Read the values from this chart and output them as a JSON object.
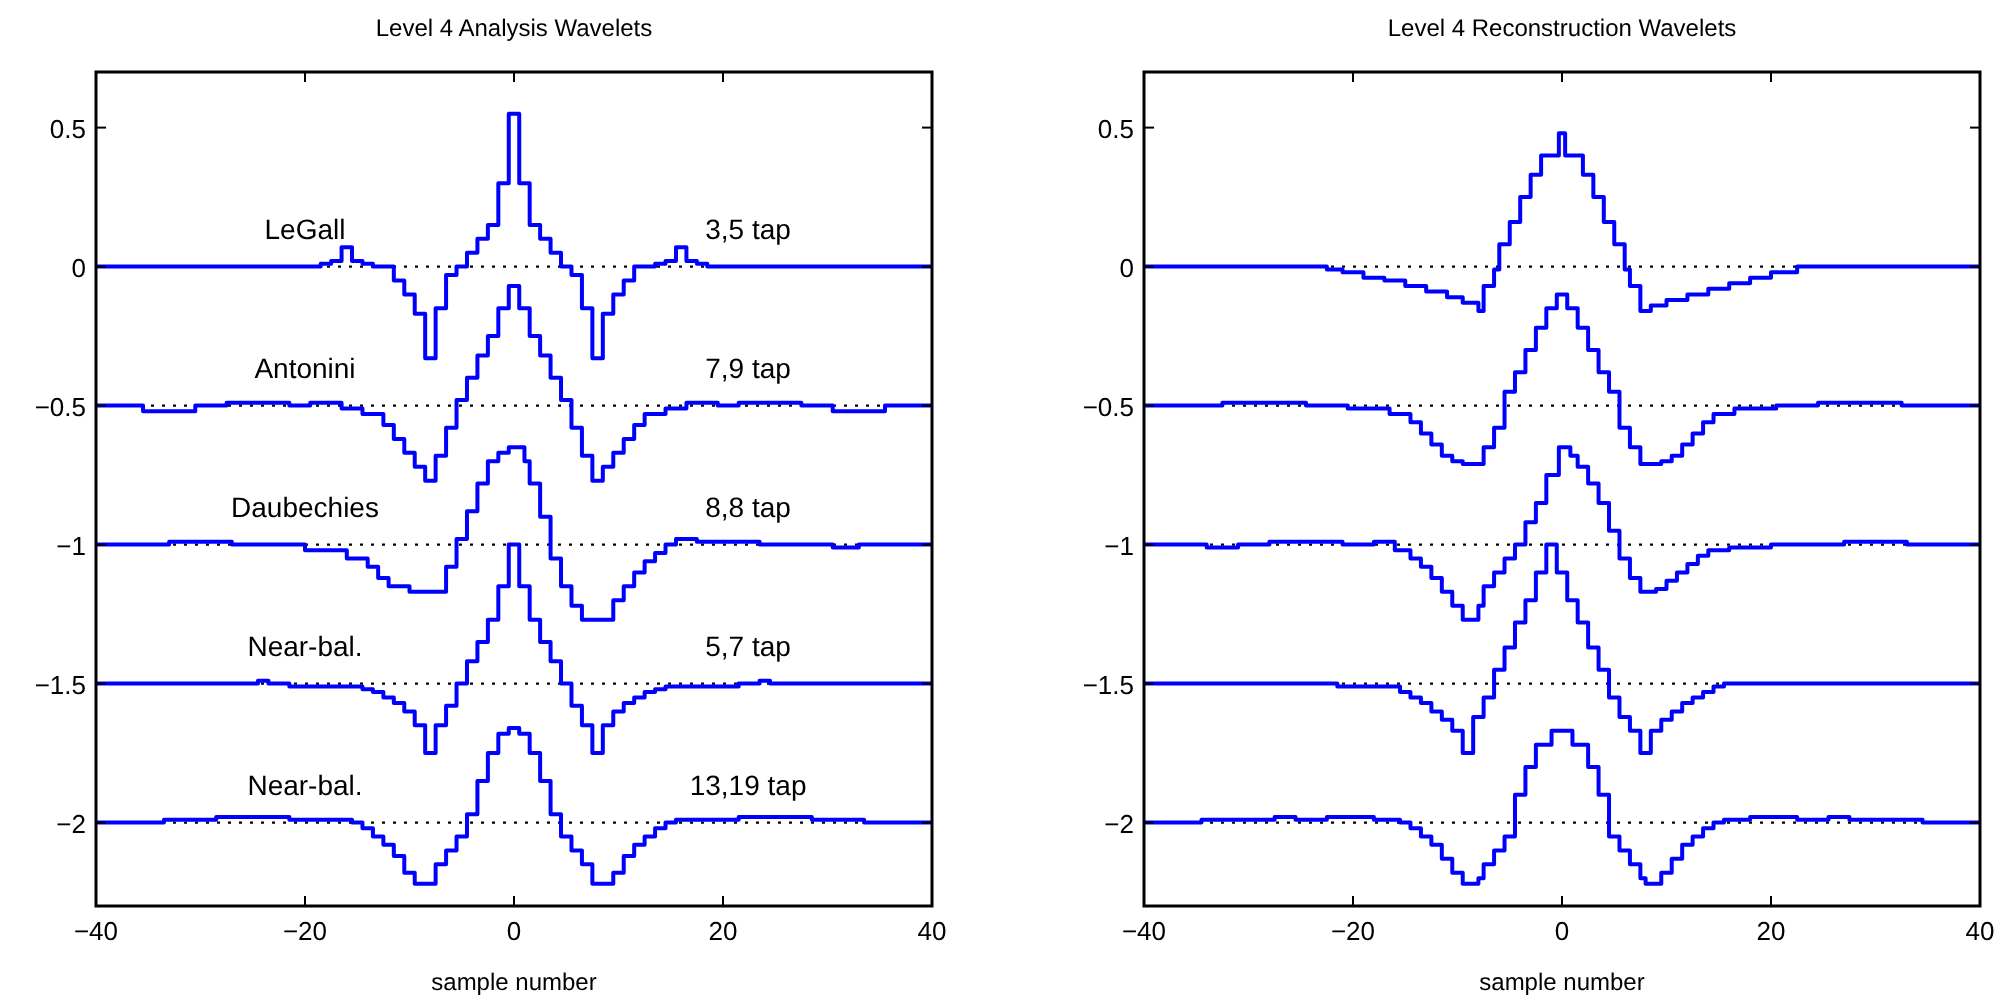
{
  "chart_data": [
    {
      "type": "step",
      "title": "Level 4 Analysis Wavelets",
      "xlabel": "sample number",
      "xlim": [
        -40,
        40
      ],
      "xticks": [
        -40,
        -20,
        0,
        20,
        40
      ],
      "ylim": [
        -2.3,
        0.7
      ],
      "yticks": [
        -2,
        -1.5,
        -1,
        -0.5,
        0,
        0.5
      ],
      "grid": false,
      "ref_lines": [
        {
          "axis": "y",
          "value": 0,
          "color": "#000000",
          "line_style": "dotted"
        },
        {
          "axis": "y",
          "value": -0.5,
          "color": "#000000",
          "line_style": "dotted"
        },
        {
          "axis": "y",
          "value": -1,
          "color": "#000000",
          "line_style": "dotted"
        },
        {
          "axis": "y",
          "value": -1.5,
          "color": "#000000",
          "line_style": "dotted"
        },
        {
          "axis": "y",
          "value": -2,
          "color": "#000000",
          "line_style": "dotted"
        }
      ],
      "annotations": [
        "3,5 tap",
        "7,9 tap",
        "8,8 tap",
        "5,7 tap",
        "13,19 tap"
      ],
      "series": [
        {
          "name": "LeGall",
          "color": "#0000ff",
          "x": [
            -40,
            -18.5,
            -17.5,
            -16.5,
            -15.5,
            -14.5,
            -13.5,
            -11.5,
            -10.5,
            -9.5,
            -8.5,
            -7.5,
            -6.5,
            -5.5,
            -4.5,
            -3.5,
            -2.5,
            -1.5,
            -0.5,
            0.5,
            1.5,
            2.5,
            3.5,
            4.5,
            5.5,
            6.5,
            7.5,
            8.5,
            9.5,
            10.5,
            11.5,
            13.5,
            14.5,
            15.5,
            16.5,
            17.5,
            18.5,
            40
          ],
          "values": [
            0,
            0.01,
            0.02,
            0.07,
            0.02,
            0.01,
            0,
            -0.05,
            -0.1,
            -0.17,
            -0.33,
            -0.15,
            -0.03,
            0,
            0.05,
            0.1,
            0.15,
            0.3,
            0.55,
            0.3,
            0.15,
            0.1,
            0.05,
            0,
            -0.03,
            -0.15,
            -0.33,
            -0.17,
            -0.1,
            -0.05,
            0,
            0.01,
            0.02,
            0.07,
            0.02,
            0.01,
            0,
            0
          ]
        },
        {
          "name": "Antonini",
          "color": "#0000ff",
          "x": [
            -40,
            -35.5,
            -30.5,
            -27.5,
            -21.5,
            -19.5,
            -16.5,
            -14.5,
            -12.5,
            -11.5,
            -10.5,
            -9.5,
            -8.5,
            -7.5,
            -6.5,
            -5.5,
            -4.5,
            -3.5,
            -2.5,
            -1.5,
            -0.5,
            0.5,
            1.5,
            2.5,
            3.5,
            4.5,
            5.5,
            6.5,
            7.5,
            8.5,
            9.5,
            10.5,
            11.5,
            12.5,
            14.5,
            16.5,
            19.5,
            21.5,
            27.5,
            30.5,
            35.5,
            40
          ],
          "values": [
            -0.5,
            -0.52,
            -0.5,
            -0.49,
            -0.5,
            -0.49,
            -0.51,
            -0.53,
            -0.57,
            -0.62,
            -0.67,
            -0.72,
            -0.77,
            -0.68,
            -0.58,
            -0.48,
            -0.4,
            -0.32,
            -0.25,
            -0.15,
            -0.07,
            -0.15,
            -0.25,
            -0.32,
            -0.4,
            -0.48,
            -0.58,
            -0.68,
            -0.77,
            -0.72,
            -0.67,
            -0.62,
            -0.57,
            -0.53,
            -0.51,
            -0.49,
            -0.5,
            -0.49,
            -0.5,
            -0.52,
            -0.5,
            -0.5
          ]
        },
        {
          "name": "Daubechies",
          "color": "#0000ff",
          "x": [
            -40,
            -33,
            -27,
            -20,
            -16,
            -14,
            -13,
            -12,
            -10,
            -9,
            -6.5,
            -5.5,
            -4.5,
            -3.5,
            -2.5,
            -1.5,
            -0.5,
            1,
            1.5,
            2.5,
            3.5,
            4.5,
            5.5,
            6.5,
            7.5,
            9.5,
            10.5,
            11.5,
            12.5,
            13.5,
            14.5,
            15.5,
            17.5,
            23.5,
            30.5,
            33,
            40
          ],
          "values": [
            -1,
            -0.99,
            -1,
            -1.02,
            -1.05,
            -1.08,
            -1.12,
            -1.15,
            -1.17,
            -1.17,
            -1.08,
            -0.98,
            -0.88,
            -0.78,
            -0.7,
            -0.67,
            -0.65,
            -0.7,
            -0.78,
            -0.9,
            -1.05,
            -1.15,
            -1.22,
            -1.27,
            -1.27,
            -1.2,
            -1.15,
            -1.1,
            -1.06,
            -1.03,
            -1,
            -0.98,
            -0.99,
            -1,
            -1.01,
            -1,
            -1
          ]
        },
        {
          "name": "Near-bal.",
          "color": "#0000ff",
          "x": [
            -40,
            -24.5,
            -23.5,
            -21.5,
            -14.5,
            -13.5,
            -12.5,
            -11.5,
            -10.5,
            -9.5,
            -8.5,
            -7.5,
            -6.5,
            -5.5,
            -4.5,
            -3.5,
            -2.5,
            -1.5,
            -0.5,
            0.5,
            1.5,
            2.5,
            3.5,
            4.5,
            5.5,
            6.5,
            7.5,
            8.5,
            9.5,
            10.5,
            11.5,
            12.5,
            13.5,
            14.5,
            21.5,
            23.5,
            24.5,
            40
          ],
          "values": [
            -1.5,
            -1.49,
            -1.5,
            -1.51,
            -1.52,
            -1.53,
            -1.55,
            -1.57,
            -1.6,
            -1.65,
            -1.75,
            -1.65,
            -1.58,
            -1.5,
            -1.42,
            -1.35,
            -1.27,
            -1.15,
            -1,
            -1.15,
            -1.27,
            -1.35,
            -1.42,
            -1.5,
            -1.58,
            -1.65,
            -1.75,
            -1.65,
            -1.6,
            -1.57,
            -1.55,
            -1.53,
            -1.52,
            -1.51,
            -1.5,
            -1.49,
            -1.5,
            -1.5
          ]
        },
        {
          "name": "Near-bal.",
          "color": "#0000ff",
          "x": [
            -40,
            -33.5,
            -28.5,
            -21.5,
            -15.5,
            -14.5,
            -13.5,
            -12.5,
            -11.5,
            -10.5,
            -9.5,
            -7.5,
            -6.5,
            -5.5,
            -4.5,
            -3.5,
            -2.5,
            -1.5,
            -0.5,
            0.5,
            1.5,
            2.5,
            3.5,
            4.5,
            5.5,
            6.5,
            7.5,
            9.5,
            10.5,
            11.5,
            12.5,
            13.5,
            14.5,
            15.5,
            21.5,
            28.5,
            33.5,
            40
          ],
          "values": [
            -2,
            -1.99,
            -1.98,
            -1.99,
            -2,
            -2.02,
            -2.05,
            -2.08,
            -2.12,
            -2.18,
            -2.22,
            -2.15,
            -2.1,
            -2.05,
            -1.97,
            -1.85,
            -1.75,
            -1.68,
            -1.66,
            -1.68,
            -1.75,
            -1.85,
            -1.97,
            -2.05,
            -2.1,
            -2.15,
            -2.22,
            -2.18,
            -2.12,
            -2.08,
            -2.05,
            -2.02,
            -2,
            -1.99,
            -1.98,
            -1.99,
            -2,
            -2
          ]
        }
      ]
    },
    {
      "type": "step",
      "title": "Level 4 Reconstruction Wavelets",
      "xlabel": "sample number",
      "xlim": [
        -40,
        40
      ],
      "xticks": [
        -40,
        -20,
        0,
        20,
        40
      ],
      "ylim": [
        -2.3,
        0.7
      ],
      "yticks": [
        -2,
        -1.5,
        -1,
        -0.5,
        0,
        0.5
      ],
      "grid": false,
      "ref_lines": [
        {
          "axis": "y",
          "value": 0,
          "color": "#000000",
          "line_style": "dotted"
        },
        {
          "axis": "y",
          "value": -0.5,
          "color": "#000000",
          "line_style": "dotted"
        },
        {
          "axis": "y",
          "value": -1,
          "color": "#000000",
          "line_style": "dotted"
        },
        {
          "axis": "y",
          "value": -1.5,
          "color": "#000000",
          "line_style": "dotted"
        },
        {
          "axis": "y",
          "value": -2,
          "color": "#000000",
          "line_style": "dotted"
        }
      ],
      "series": [
        {
          "color": "#0000ff",
          "x": [
            -40,
            -22.5,
            -21,
            -19,
            -17,
            -15,
            -13,
            -11,
            -9.5,
            -8,
            -7.5,
            -6.5,
            -6,
            -5,
            -4,
            -3,
            -2,
            -0.3,
            0.3,
            2,
            3,
            4,
            5,
            6,
            6.5,
            7.5,
            8.5,
            10,
            12,
            14,
            16,
            18,
            20,
            22.5,
            40
          ],
          "values": [
            0,
            -0.01,
            -0.02,
            -0.04,
            -0.05,
            -0.07,
            -0.09,
            -0.11,
            -0.13,
            -0.16,
            -0.07,
            -0.01,
            0.08,
            0.16,
            0.25,
            0.33,
            0.4,
            0.48,
            0.4,
            0.33,
            0.25,
            0.16,
            0.08,
            -0.01,
            -0.07,
            -0.16,
            -0.14,
            -0.12,
            -0.1,
            -0.08,
            -0.06,
            -0.04,
            -0.02,
            0,
            0
          ]
        },
        {
          "color": "#0000ff",
          "x": [
            -40,
            -32.5,
            -24.5,
            -20.5,
            -16.5,
            -14.5,
            -13.5,
            -12.5,
            -11.5,
            -10.5,
            -9.5,
            -7.5,
            -6.5,
            -5.5,
            -4.5,
            -3.5,
            -2.5,
            -1.5,
            -0.5,
            0.5,
            1.5,
            2.5,
            3.5,
            4.5,
            5.5,
            6.5,
            7.5,
            9.5,
            10.5,
            11.5,
            12.5,
            13.5,
            14.5,
            16.5,
            20.5,
            24.5,
            32.5,
            40
          ],
          "values": [
            -0.5,
            -0.49,
            -0.5,
            -0.51,
            -0.53,
            -0.56,
            -0.6,
            -0.64,
            -0.68,
            -0.7,
            -0.71,
            -0.65,
            -0.58,
            -0.45,
            -0.38,
            -0.3,
            -0.22,
            -0.15,
            -0.1,
            -0.15,
            -0.22,
            -0.3,
            -0.38,
            -0.45,
            -0.58,
            -0.65,
            -0.71,
            -0.7,
            -0.68,
            -0.64,
            -0.6,
            -0.56,
            -0.53,
            -0.51,
            -0.5,
            -0.49,
            -0.5,
            -0.5
          ]
        },
        {
          "color": "#0000ff",
          "x": [
            -40,
            -34,
            -31,
            -28,
            -21,
            -18,
            -16,
            -14.5,
            -13.5,
            -12.5,
            -11.5,
            -10.5,
            -9.5,
            -8,
            -7.5,
            -6.5,
            -5.5,
            -4.5,
            -3.5,
            -2.5,
            -1.5,
            -0.3,
            0.8,
            1.5,
            2.5,
            3.5,
            4.5,
            5.5,
            6.5,
            7.5,
            9,
            10,
            11,
            12,
            13,
            14,
            16,
            20,
            27,
            33,
            40
          ],
          "values": [
            -1,
            -1.01,
            -1,
            -0.99,
            -1,
            -0.99,
            -1.02,
            -1.05,
            -1.08,
            -1.12,
            -1.17,
            -1.22,
            -1.27,
            -1.22,
            -1.15,
            -1.1,
            -1.05,
            -1,
            -0.92,
            -0.85,
            -0.75,
            -0.65,
            -0.68,
            -0.72,
            -0.78,
            -0.85,
            -0.95,
            -1.05,
            -1.12,
            -1.17,
            -1.16,
            -1.13,
            -1.1,
            -1.07,
            -1.04,
            -1.02,
            -1.01,
            -1,
            -0.99,
            -1,
            -1
          ]
        },
        {
          "color": "#0000ff",
          "x": [
            -40,
            -21.5,
            -15.5,
            -14.5,
            -13.5,
            -12.5,
            -11.5,
            -10.5,
            -9.5,
            -8.5,
            -7.5,
            -6.5,
            -5.5,
            -4.5,
            -3.5,
            -2.5,
            -1.5,
            -0.5,
            0.5,
            1.5,
            2.5,
            3.5,
            4.5,
            5.5,
            6.5,
            7.5,
            8.5,
            9.5,
            10.5,
            11.5,
            12.5,
            13.5,
            14.5,
            15.5,
            21.5,
            40
          ],
          "values": [
            -1.5,
            -1.51,
            -1.53,
            -1.55,
            -1.57,
            -1.6,
            -1.63,
            -1.67,
            -1.75,
            -1.62,
            -1.55,
            -1.45,
            -1.37,
            -1.28,
            -1.2,
            -1.1,
            -1,
            -1.1,
            -1.2,
            -1.28,
            -1.37,
            -1.45,
            -1.55,
            -1.62,
            -1.67,
            -1.75,
            -1.67,
            -1.63,
            -1.6,
            -1.57,
            -1.55,
            -1.53,
            -1.51,
            -1.5,
            -1.5,
            -1.5
          ]
        },
        {
          "color": "#0000ff",
          "x": [
            -40,
            -34.5,
            -27.5,
            -25.5,
            -22.5,
            -18,
            -15.5,
            -14.5,
            -13.5,
            -12.5,
            -11.5,
            -10.5,
            -9.5,
            -8,
            -7.5,
            -6.5,
            -5.5,
            -4.5,
            -3.5,
            -2.5,
            -1,
            1,
            2.5,
            3.5,
            4.5,
            5.5,
            6.5,
            7.5,
            8,
            9.5,
            10.5,
            11.5,
            12.5,
            13.5,
            14.5,
            15.5,
            18,
            22.5,
            25.5,
            27.5,
            34.5,
            40
          ],
          "values": [
            -2,
            -1.99,
            -1.98,
            -1.99,
            -1.98,
            -1.99,
            -2,
            -2.02,
            -2.05,
            -2.08,
            -2.13,
            -2.18,
            -2.22,
            -2.2,
            -2.15,
            -2.1,
            -2.05,
            -1.9,
            -1.8,
            -1.72,
            -1.67,
            -1.72,
            -1.8,
            -1.9,
            -2.05,
            -2.1,
            -2.15,
            -2.2,
            -2.22,
            -2.18,
            -2.13,
            -2.08,
            -2.05,
            -2.02,
            -2,
            -1.99,
            -1.98,
            -1.99,
            -1.98,
            -1.99,
            -2,
            -2
          ]
        }
      ]
    }
  ]
}
